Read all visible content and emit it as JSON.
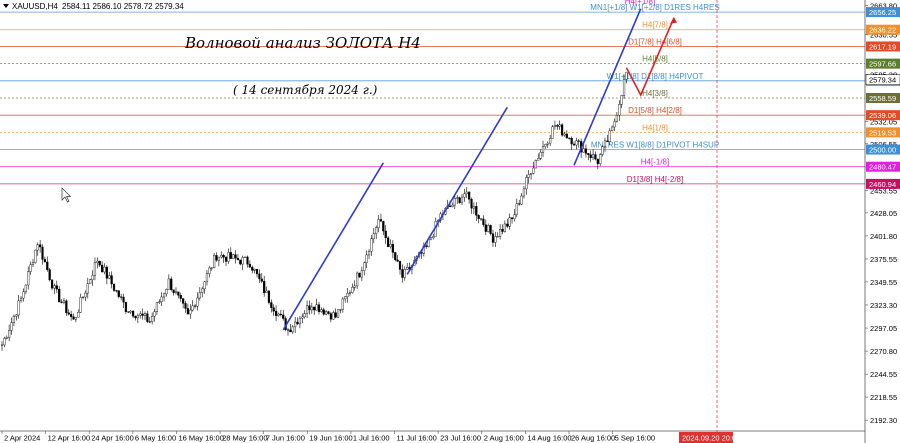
{
  "header": {
    "symbol": "XAUUSD,H4",
    "ohlc": "2584.11 2586.10 2578.72 2579.34"
  },
  "annotation": {
    "title": "Волновой анализ ЗОЛОТА H4",
    "subtitle": "( 14 сентября 2024 г.)"
  },
  "colors": {
    "candles": "#000000",
    "wave_lines": "#2b3bd8",
    "forecast": "#e02020",
    "grid": "#c9c9c9"
  },
  "chart_data": {
    "type": "candlestick",
    "title": "",
    "ylim": [
      2180,
      2670
    ],
    "grid": false,
    "y_ticks": [
      "2663.80",
      "2630.55",
      "2585.30",
      "2532.05",
      "2506.55",
      "2480.05",
      "2453.55",
      "2428.05",
      "2401.80",
      "2375.55",
      "2349.55",
      "2323.30",
      "2297.05",
      "2270.80",
      "2244.55",
      "2218.55",
      "2192.30"
    ],
    "x_ticks": [
      "2 Apr 2024",
      "12 Apr 16:00",
      "24 Apr 16:00",
      "6 May 16:00",
      "16 May 16:00",
      "28 May 16:00",
      "7 Jun 16:00",
      "19 Jun 16:00",
      "1 Jul 16:00",
      "11 Jul 16:00",
      "23 Jul 16:00",
      "2 Aug 16:00",
      "14 Aug 16:00",
      "26 Aug 16:00",
      "5 Sep 16:00",
      "2024.09.20 20:00"
    ],
    "price_labels": [
      {
        "value": 2656.25,
        "text": "2656.25",
        "color": "#3d8fd8"
      },
      {
        "value": 2636.22,
        "text": "2636.22",
        "color": "#f0902a"
      },
      {
        "value": 2617.19,
        "text": "2617.19",
        "color": "#e34a2a"
      },
      {
        "value": 2597.66,
        "text": "2597.66",
        "color": "#5a7d2e"
      },
      {
        "value": 2578.12,
        "text": "2578.12",
        "color": "#3d8fd8"
      },
      {
        "value": 2558.59,
        "text": "2558.59",
        "color": "#6e6e3a"
      },
      {
        "value": 2539.06,
        "text": "2539.06",
        "color": "#e34a2a"
      },
      {
        "value": 2519.53,
        "text": "2519.53",
        "color": "#f0902a"
      },
      {
        "value": 2500.0,
        "text": "2500.00",
        "color": "#3d8fd8"
      },
      {
        "value": 2480.47,
        "text": "2480.47",
        "color": "#e020e0"
      },
      {
        "value": 2460.94,
        "text": "2460.94",
        "color": "#c81060"
      }
    ],
    "current_price": {
      "value": 2579.34,
      "text": "2579.34"
    },
    "levels": [
      {
        "value": 2656.25,
        "label": "MN1[+1/8] W1[+2/8] D1RES H4RES",
        "color": "#3d8fd8",
        "style": "solid"
      },
      {
        "value": 2636.22,
        "label": "H4[7/8]",
        "color": "#f0902a",
        "style": "solid"
      },
      {
        "value": 2617.19,
        "label": "D1[7/8] H4[6/8]",
        "color": "#e34a2a",
        "style": "solid"
      },
      {
        "value": 2597.66,
        "label": "H4[5/8]",
        "color": "#5a7d2e",
        "style": "dotted"
      },
      {
        "value": 2578.12,
        "label": "W1[+1/8] D1[8/8] H4PIVOT",
        "color": "#3d8fd8",
        "style": "solid"
      },
      {
        "value": 2558.59,
        "label": "H4[3/8]",
        "color": "#6e6e3a",
        "style": "dotted"
      },
      {
        "value": 2539.06,
        "label": "D1[5/8] H4[2/8]",
        "color": "#e34a2a",
        "style": "solid"
      },
      {
        "value": 2519.53,
        "label": "H4[1/8]",
        "color": "#f0902a",
        "style": "dotted"
      },
      {
        "value": 2500.0,
        "label": "MN1RES W1[8/8] D1PIVOT H4SUP",
        "color": "#3d8fd8",
        "style": "solid"
      },
      {
        "value": 2480.47,
        "label": "H4[-1/8]",
        "color": "#e020e0",
        "style": "solid"
      },
      {
        "value": 2460.94,
        "label": "D1[3/8] H4[-2/8]",
        "color": "#c81060",
        "style": "solid"
      }
    ],
    "top_label": "H4[+1/8]",
    "trend_lines": [
      {
        "x": [
          "19 Jun 16:00",
          "11 Jul 16:00"
        ],
        "y": [
          2295,
          2485
        ]
      },
      {
        "x": [
          "23 Jul 16:00",
          "14 Aug 16:00"
        ],
        "y": [
          2358,
          2548
        ]
      },
      {
        "x": [
          "5 Sep 16:00",
          "2024.09.20 20:00"
        ],
        "y": [
          2482,
          2660
        ]
      }
    ],
    "forecast": {
      "points": [
        {
          "t": "11 Sep 2024",
          "y": 2593
        },
        {
          "t": "13 Sep 2024",
          "y": 2562
        },
        {
          "t": "2024.09.20 20:00",
          "y": 2650
        }
      ]
    },
    "time_marker": "2024.09.20 20:00",
    "anchors": [
      {
        "t": 0,
        "y": 2278
      },
      {
        "t": 8,
        "y": 2330
      },
      {
        "t": 15,
        "y": 2395
      },
      {
        "t": 22,
        "y": 2340
      },
      {
        "t": 30,
        "y": 2305
      },
      {
        "t": 40,
        "y": 2375
      },
      {
        "t": 52,
        "y": 2320
      },
      {
        "t": 62,
        "y": 2305
      },
      {
        "t": 70,
        "y": 2350
      },
      {
        "t": 78,
        "y": 2310
      },
      {
        "t": 90,
        "y": 2380
      },
      {
        "t": 104,
        "y": 2372
      },
      {
        "t": 112,
        "y": 2330
      },
      {
        "t": 120,
        "y": 2295
      },
      {
        "t": 130,
        "y": 2325
      },
      {
        "t": 140,
        "y": 2310
      },
      {
        "t": 150,
        "y": 2360
      },
      {
        "t": 158,
        "y": 2420
      },
      {
        "t": 168,
        "y": 2355
      },
      {
        "t": 178,
        "y": 2388
      },
      {
        "t": 184,
        "y": 2425
      },
      {
        "t": 194,
        "y": 2450
      },
      {
        "t": 206,
        "y": 2400
      },
      {
        "t": 214,
        "y": 2420
      },
      {
        "t": 222,
        "y": 2478
      },
      {
        "t": 232,
        "y": 2528
      },
      {
        "t": 242,
        "y": 2505
      },
      {
        "t": 250,
        "y": 2487
      },
      {
        "t": 256,
        "y": 2522
      },
      {
        "t": 262,
        "y": 2588
      }
    ]
  }
}
